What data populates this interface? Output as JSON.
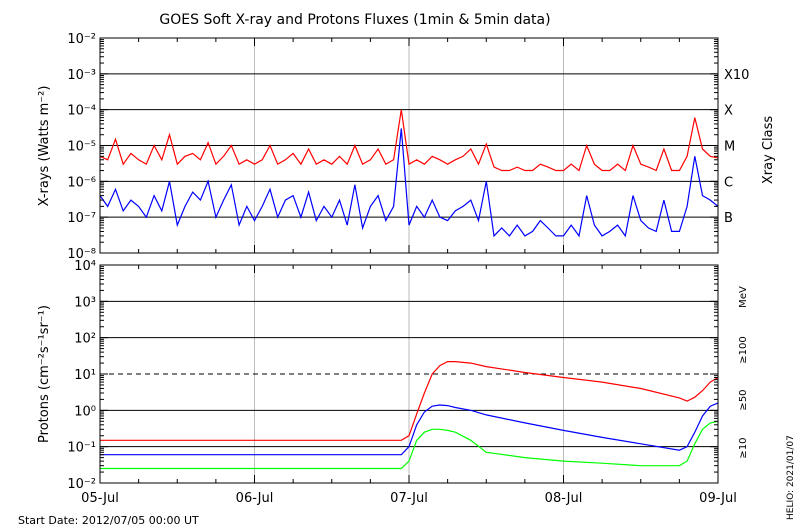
{
  "title": "GOES Soft X-ray and Protons Fluxes   (1min & 5min data)",
  "start_date_label": "Start Date: 2012/07/05 00:00 UT",
  "credit": "HELIO: 2021/01/07",
  "colors": {
    "red": "#ff0000",
    "blue": "#0000ff",
    "green": "#00ff00",
    "grid": "#bbbbbb",
    "frame": "#000000"
  },
  "chart_data": [
    {
      "type": "line",
      "panel": "xray",
      "ylabel": "X-rays (Watts m⁻²)",
      "yscale": "log",
      "ylim": [
        1e-08,
        0.01
      ],
      "ytick_labels": [
        "10⁻⁸",
        "10⁻⁷",
        "10⁻⁶",
        "10⁻⁵",
        "10⁻⁴",
        "10⁻³",
        "10⁻²"
      ],
      "right_axis_title": "Xray Class",
      "class_labels": [
        "B",
        "C",
        "M",
        "X",
        "X10"
      ],
      "x_tick_labels": [
        "05-Jul",
        "06-Jul",
        "07-Jul",
        "08-Jul",
        "09-Jul"
      ],
      "xlim_days": [
        0,
        4
      ],
      "grid": true,
      "series": [
        {
          "color": "red",
          "x": [
            0.0,
            0.05,
            0.1,
            0.15,
            0.2,
            0.25,
            0.3,
            0.35,
            0.4,
            0.45,
            0.5,
            0.55,
            0.6,
            0.65,
            0.7,
            0.75,
            0.8,
            0.85,
            0.9,
            0.95,
            1.0,
            1.05,
            1.1,
            1.15,
            1.2,
            1.25,
            1.3,
            1.35,
            1.4,
            1.45,
            1.5,
            1.55,
            1.6,
            1.65,
            1.7,
            1.75,
            1.8,
            1.85,
            1.9,
            1.95,
            2.0,
            2.05,
            2.1,
            2.15,
            2.2,
            2.25,
            2.3,
            2.35,
            2.4,
            2.45,
            2.5,
            2.55,
            2.6,
            2.65,
            2.7,
            2.75,
            2.8,
            2.85,
            2.9,
            2.95,
            3.0,
            3.05,
            3.1,
            3.15,
            3.2,
            3.25,
            3.3,
            3.35,
            3.4,
            3.45,
            3.5,
            3.55,
            3.6,
            3.65,
            3.7,
            3.75,
            3.8,
            3.85,
            3.9,
            3.95,
            4.0
          ],
          "y": [
            5e-06,
            4e-06,
            1.5e-05,
            3e-06,
            6e-06,
            4e-06,
            3e-06,
            1e-05,
            4e-06,
            2e-05,
            3e-06,
            5e-06,
            6e-06,
            4e-06,
            1.2e-05,
            3e-06,
            5e-06,
            1e-05,
            3e-06,
            4e-06,
            3e-06,
            4e-06,
            1e-05,
            3e-06,
            4e-06,
            6e-06,
            3e-06,
            8e-06,
            3e-06,
            4e-06,
            3e-06,
            5e-06,
            3e-06,
            1e-05,
            3e-06,
            4e-06,
            8e-06,
            3e-06,
            4e-06,
            0.0001,
            3e-06,
            4e-06,
            3e-06,
            5e-06,
            4e-06,
            3e-06,
            4e-06,
            5e-06,
            8e-06,
            3e-06,
            1.1e-05,
            2.5e-06,
            2e-06,
            2e-06,
            2.5e-06,
            2e-06,
            2e-06,
            3e-06,
            2.5e-06,
            2e-06,
            2e-06,
            3e-06,
            2e-06,
            1e-05,
            3e-06,
            2e-06,
            2e-06,
            3e-06,
            2e-06,
            1e-05,
            3e-06,
            2.5e-06,
            2e-06,
            8e-06,
            2e-06,
            2e-06,
            5e-06,
            6e-05,
            8e-06,
            5e-06,
            4.5e-06
          ]
        },
        {
          "color": "blue",
          "x": [
            0.0,
            0.05,
            0.1,
            0.15,
            0.2,
            0.25,
            0.3,
            0.35,
            0.4,
            0.45,
            0.5,
            0.55,
            0.6,
            0.65,
            0.7,
            0.75,
            0.8,
            0.85,
            0.9,
            0.95,
            1.0,
            1.05,
            1.1,
            1.15,
            1.2,
            1.25,
            1.3,
            1.35,
            1.4,
            1.45,
            1.5,
            1.55,
            1.6,
            1.65,
            1.7,
            1.75,
            1.8,
            1.85,
            1.9,
            1.95,
            2.0,
            2.05,
            2.1,
            2.15,
            2.2,
            2.25,
            2.3,
            2.35,
            2.4,
            2.45,
            2.5,
            2.55,
            2.6,
            2.65,
            2.7,
            2.75,
            2.8,
            2.85,
            2.9,
            2.95,
            3.0,
            3.05,
            3.1,
            3.15,
            3.2,
            3.25,
            3.3,
            3.35,
            3.4,
            3.45,
            3.5,
            3.55,
            3.6,
            3.65,
            3.7,
            3.75,
            3.8,
            3.85,
            3.9,
            3.95,
            4.0
          ],
          "y": [
            4e-07,
            2e-07,
            6e-07,
            1.5e-07,
            3e-07,
            2e-07,
            1e-07,
            4e-07,
            1.5e-07,
            1e-06,
            6e-08,
            2e-07,
            5e-07,
            3e-07,
            1e-06,
            1e-07,
            3e-07,
            8e-07,
            6e-08,
            2e-07,
            8e-08,
            2e-07,
            6e-07,
            1e-07,
            3e-07,
            4e-07,
            1e-07,
            5e-07,
            8e-08,
            2e-07,
            1e-07,
            3e-07,
            6e-08,
            8e-07,
            5e-08,
            2e-07,
            4e-07,
            8e-08,
            2e-07,
            3e-05,
            6e-08,
            2e-07,
            1e-07,
            3e-07,
            1e-07,
            8e-08,
            1.5e-07,
            2e-07,
            3e-07,
            8e-08,
            1e-06,
            3e-08,
            5e-08,
            3e-08,
            6e-08,
            3e-08,
            4e-08,
            8e-08,
            5e-08,
            3e-08,
            3e-08,
            6e-08,
            3e-08,
            4e-07,
            6e-08,
            3e-08,
            4e-08,
            6e-08,
            3e-08,
            4e-07,
            8e-08,
            5e-08,
            4e-08,
            3e-07,
            4e-08,
            4e-08,
            2e-07,
            5e-06,
            4e-07,
            3e-07,
            2e-07
          ]
        }
      ]
    },
    {
      "type": "line",
      "panel": "protons",
      "ylabel": "Protons (cm⁻²s⁻¹sr⁻¹)",
      "yscale": "log",
      "ylim": [
        0.01,
        10000
      ],
      "ytick_labels": [
        "10⁻²",
        "10⁻¹",
        "10⁰",
        "10¹",
        "10²",
        "10³",
        "10⁴"
      ],
      "units_label": "MeV",
      "energy_labels": [
        {
          "text": "≥100",
          "color": "green"
        },
        {
          "text": "≥50",
          "color": "blue"
        },
        {
          "text": "≥10",
          "color": "red"
        }
      ],
      "reference_line": 10,
      "x_tick_labels": [
        "05-Jul",
        "06-Jul",
        "07-Jul",
        "08-Jul",
        "09-Jul"
      ],
      "xlim_days": [
        0,
        4
      ],
      "grid": true,
      "series": [
        {
          "color": "red",
          "x": [
            0.0,
            0.25,
            0.5,
            0.75,
            1.0,
            1.25,
            1.5,
            1.75,
            1.95,
            2.0,
            2.05,
            2.1,
            2.15,
            2.2,
            2.25,
            2.3,
            2.4,
            2.5,
            2.75,
            3.0,
            3.25,
            3.5,
            3.75,
            3.8,
            3.85,
            3.9,
            3.95,
            4.0
          ],
          "y": [
            0.15,
            0.15,
            0.15,
            0.15,
            0.15,
            0.15,
            0.15,
            0.15,
            0.15,
            0.2,
            0.8,
            3,
            10,
            17,
            22,
            22,
            20,
            16,
            11,
            8,
            6,
            4,
            2.2,
            1.8,
            2.3,
            3.5,
            6,
            8
          ]
        },
        {
          "color": "blue",
          "x": [
            0.0,
            0.25,
            0.5,
            0.75,
            1.0,
            1.25,
            1.5,
            1.75,
            1.95,
            2.0,
            2.05,
            2.1,
            2.15,
            2.2,
            2.25,
            2.3,
            2.4,
            2.5,
            2.75,
            3.0,
            3.25,
            3.5,
            3.75,
            3.8,
            3.85,
            3.9,
            3.95,
            4.0
          ],
          "y": [
            0.06,
            0.06,
            0.06,
            0.06,
            0.06,
            0.06,
            0.06,
            0.06,
            0.06,
            0.1,
            0.4,
            0.9,
            1.3,
            1.4,
            1.35,
            1.2,
            1,
            0.75,
            0.45,
            0.28,
            0.18,
            0.12,
            0.08,
            0.1,
            0.25,
            0.7,
            1.3,
            1.6
          ]
        },
        {
          "color": "green",
          "x": [
            0.0,
            0.25,
            0.5,
            0.75,
            1.0,
            1.25,
            1.5,
            1.75,
            1.95,
            2.0,
            2.05,
            2.1,
            2.15,
            2.2,
            2.25,
            2.3,
            2.4,
            2.5,
            2.75,
            3.0,
            3.25,
            3.5,
            3.75,
            3.8,
            3.85,
            3.9,
            3.95,
            4.0
          ],
          "y": [
            0.025,
            0.025,
            0.025,
            0.025,
            0.025,
            0.025,
            0.025,
            0.025,
            0.025,
            0.04,
            0.15,
            0.25,
            0.3,
            0.3,
            0.28,
            0.25,
            0.15,
            0.07,
            0.05,
            0.04,
            0.035,
            0.03,
            0.03,
            0.04,
            0.12,
            0.3,
            0.45,
            0.5
          ]
        }
      ]
    }
  ]
}
